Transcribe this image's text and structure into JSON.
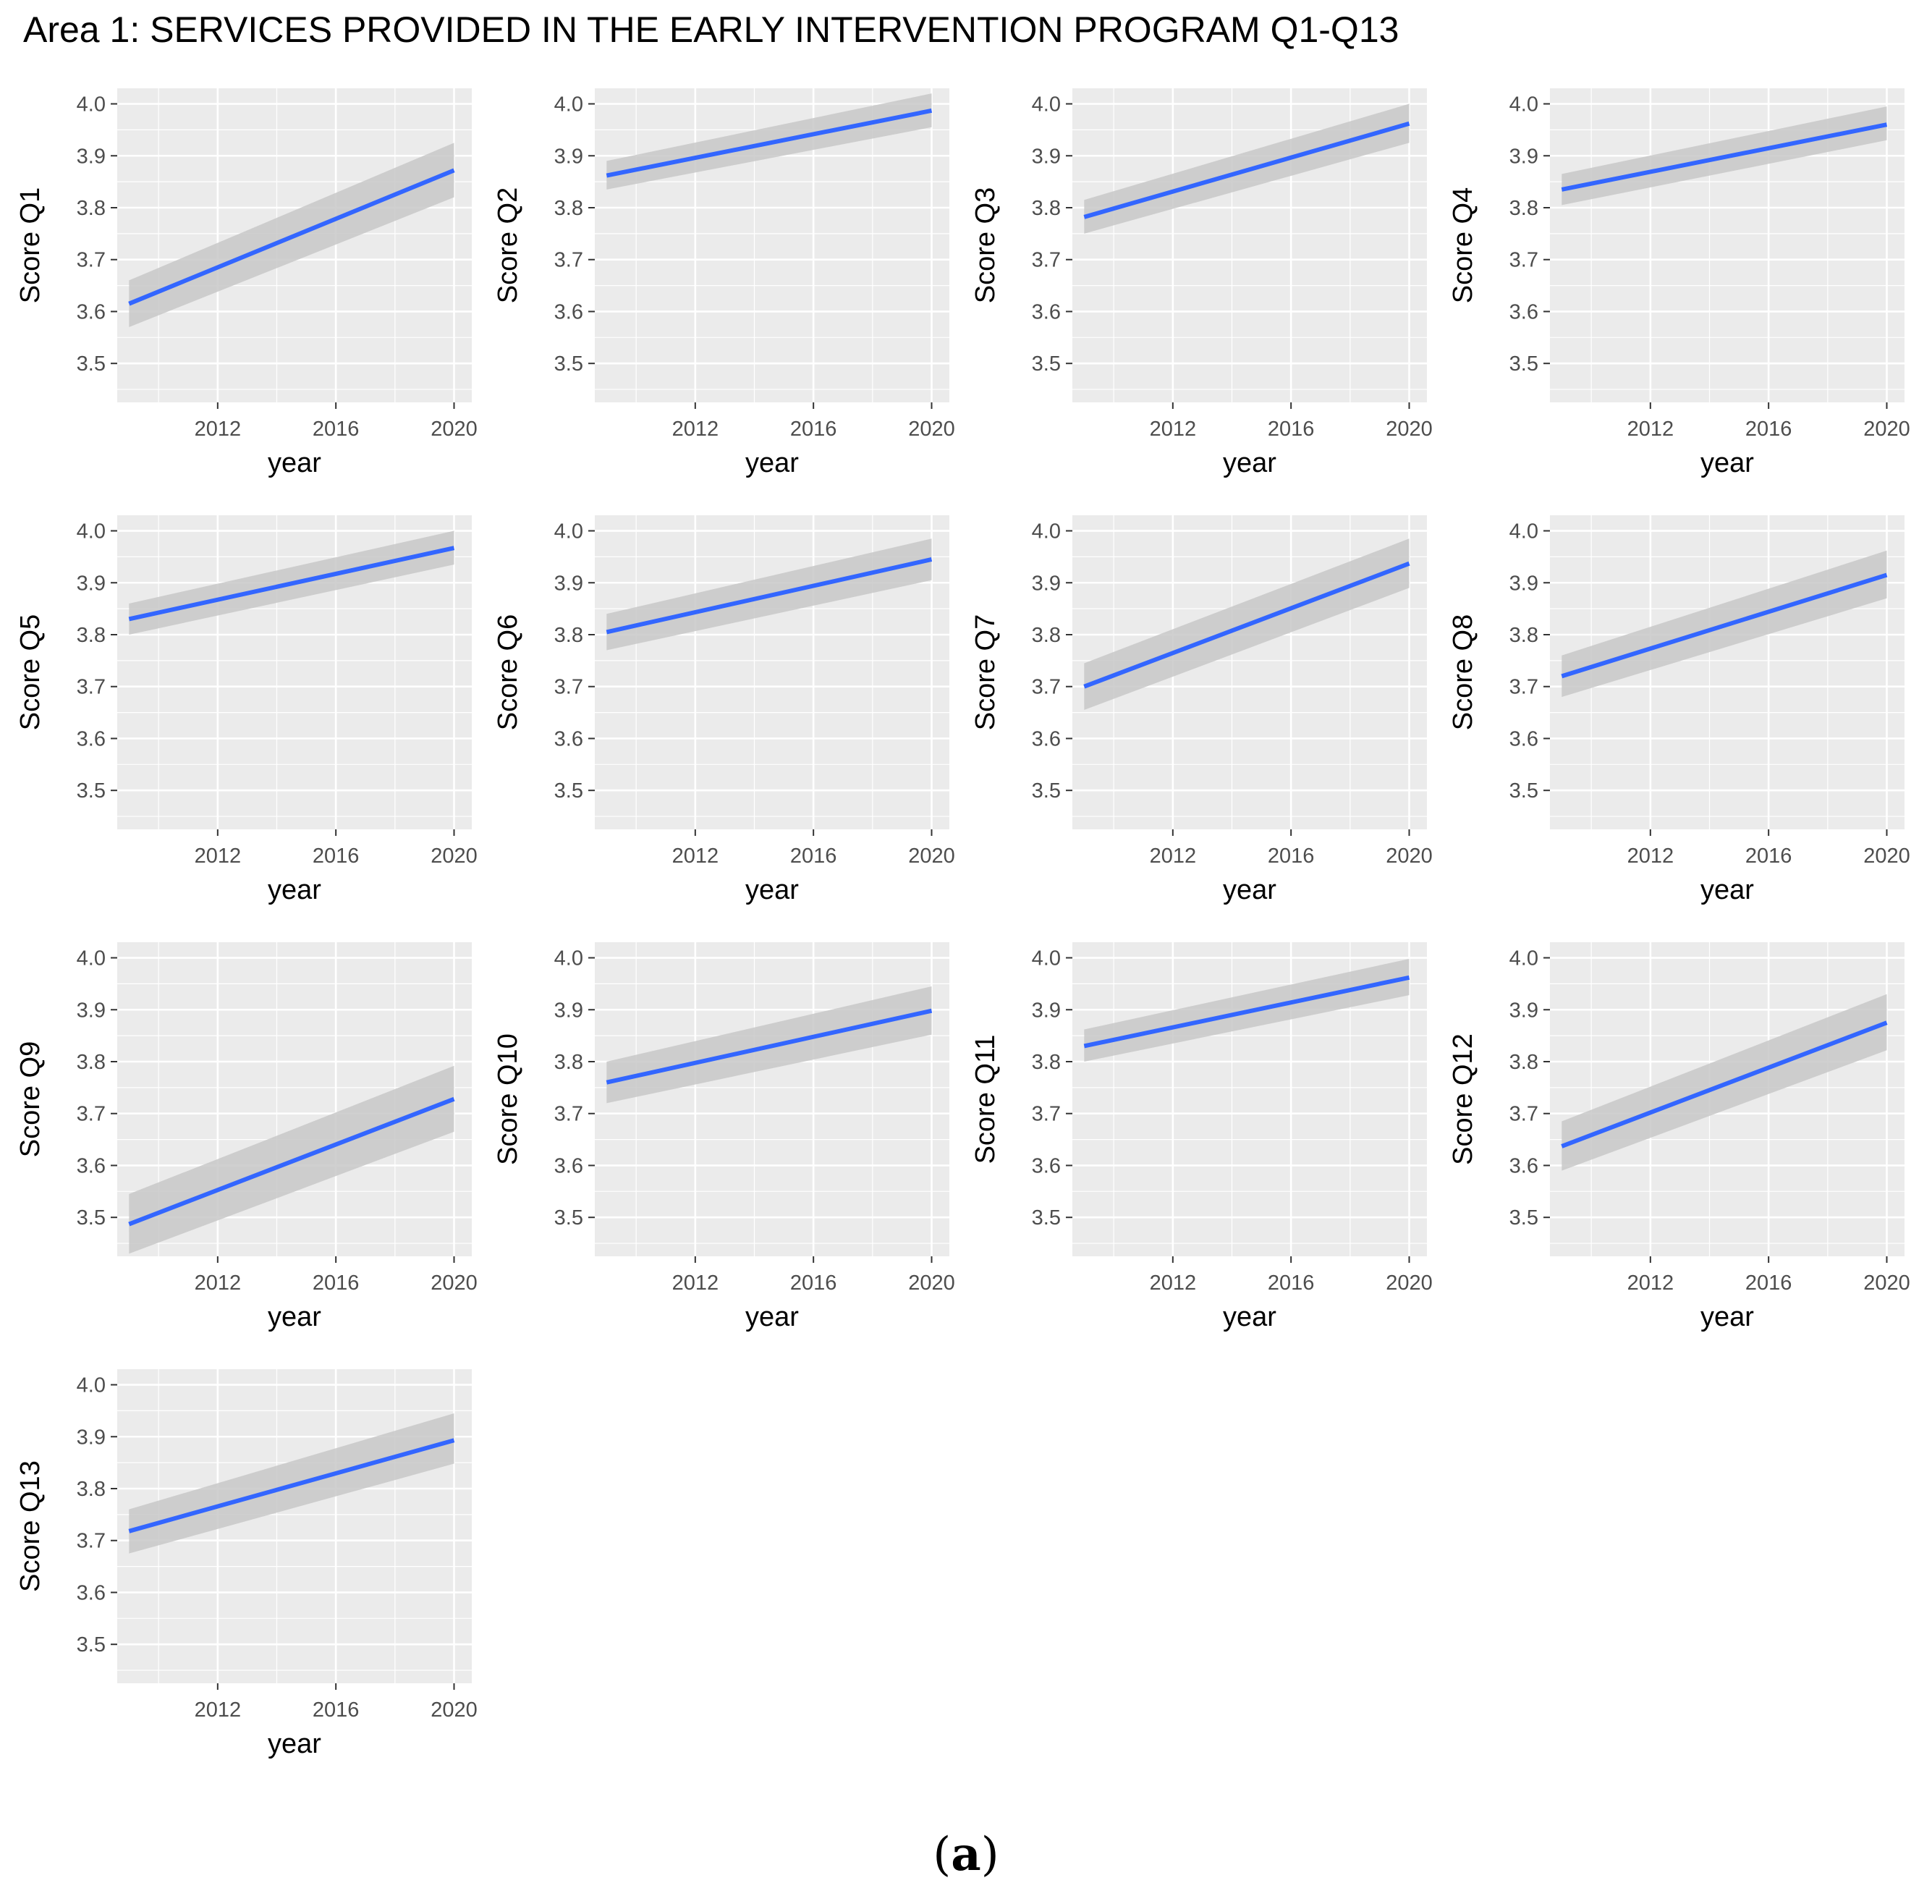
{
  "title": "Area 1: SERVICES PROVIDED IN THE EARLY INTERVENTION PROGRAM Q1-Q13",
  "panel_caption": {
    "open": "(",
    "letter": "a",
    "close": ")"
  },
  "colors": {
    "panel_background": "#ebebeb",
    "grid_major": "#ffffff",
    "line": "#3366ff",
    "confidence_band": "#c8c8c8",
    "tick_label": "#4d4d4d",
    "axis_title": "#000000"
  },
  "chart_data": [
    {
      "type": "line",
      "title": "",
      "xlabel": "year",
      "ylabel": "Score Q1",
      "xlim": [
        2008.6,
        2020.6
      ],
      "ylim": [
        3.425,
        4.03
      ],
      "x_ticks": [
        2012,
        2016,
        2020
      ],
      "y_ticks": [
        3.5,
        3.6,
        3.7,
        3.8,
        3.9,
        4.0
      ],
      "x": [
        2009,
        2020
      ],
      "values": [
        3.615,
        3.872
      ],
      "band_lower": [
        3.57,
        3.82
      ],
      "band_upper": [
        3.66,
        3.925
      ]
    },
    {
      "type": "line",
      "title": "",
      "xlabel": "year",
      "ylabel": "Score Q2",
      "xlim": [
        2008.6,
        2020.6
      ],
      "ylim": [
        3.425,
        4.03
      ],
      "x_ticks": [
        2012,
        2016,
        2020
      ],
      "y_ticks": [
        3.5,
        3.6,
        3.7,
        3.8,
        3.9,
        4.0
      ],
      "x": [
        2009,
        2020
      ],
      "values": [
        3.862,
        3.987
      ],
      "band_lower": [
        3.835,
        3.955
      ],
      "band_upper": [
        3.89,
        4.02
      ]
    },
    {
      "type": "line",
      "title": "",
      "xlabel": "year",
      "ylabel": "Score Q3",
      "xlim": [
        2008.6,
        2020.6
      ],
      "ylim": [
        3.425,
        4.03
      ],
      "x_ticks": [
        2012,
        2016,
        2020
      ],
      "y_ticks": [
        3.5,
        3.6,
        3.7,
        3.8,
        3.9,
        4.0
      ],
      "x": [
        2009,
        2020
      ],
      "values": [
        3.782,
        3.962
      ],
      "band_lower": [
        3.75,
        3.925
      ],
      "band_upper": [
        3.815,
        4.0
      ]
    },
    {
      "type": "line",
      "title": "",
      "xlabel": "year",
      "ylabel": "Score Q4",
      "xlim": [
        2008.6,
        2020.6
      ],
      "ylim": [
        3.425,
        4.03
      ],
      "x_ticks": [
        2012,
        2016,
        2020
      ],
      "y_ticks": [
        3.5,
        3.6,
        3.7,
        3.8,
        3.9,
        4.0
      ],
      "x": [
        2009,
        2020
      ],
      "values": [
        3.835,
        3.96
      ],
      "band_lower": [
        3.805,
        3.93
      ],
      "band_upper": [
        3.865,
        3.995
      ]
    },
    {
      "type": "line",
      "title": "",
      "xlabel": "year",
      "ylabel": "Score Q5",
      "xlim": [
        2008.6,
        2020.6
      ],
      "ylim": [
        3.425,
        4.03
      ],
      "x_ticks": [
        2012,
        2016,
        2020
      ],
      "y_ticks": [
        3.5,
        3.6,
        3.7,
        3.8,
        3.9,
        4.0
      ],
      "x": [
        2009,
        2020
      ],
      "values": [
        3.83,
        3.967
      ],
      "band_lower": [
        3.8,
        3.935
      ],
      "band_upper": [
        3.86,
        4.0
      ]
    },
    {
      "type": "line",
      "title": "",
      "xlabel": "year",
      "ylabel": "Score Q6",
      "xlim": [
        2008.6,
        2020.6
      ],
      "ylim": [
        3.425,
        4.03
      ],
      "x_ticks": [
        2012,
        2016,
        2020
      ],
      "y_ticks": [
        3.5,
        3.6,
        3.7,
        3.8,
        3.9,
        4.0
      ],
      "x": [
        2009,
        2020
      ],
      "values": [
        3.805,
        3.945
      ],
      "band_lower": [
        3.77,
        3.905
      ],
      "band_upper": [
        3.84,
        3.985
      ]
    },
    {
      "type": "line",
      "title": "",
      "xlabel": "year",
      "ylabel": "Score Q7",
      "xlim": [
        2008.6,
        2020.6
      ],
      "ylim": [
        3.425,
        4.03
      ],
      "x_ticks": [
        2012,
        2016,
        2020
      ],
      "y_ticks": [
        3.5,
        3.6,
        3.7,
        3.8,
        3.9,
        4.0
      ],
      "x": [
        2009,
        2020
      ],
      "values": [
        3.7,
        3.937
      ],
      "band_lower": [
        3.655,
        3.89
      ],
      "band_upper": [
        3.745,
        3.985
      ]
    },
    {
      "type": "line",
      "title": "",
      "xlabel": "year",
      "ylabel": "Score Q8",
      "xlim": [
        2008.6,
        2020.6
      ],
      "ylim": [
        3.425,
        4.03
      ],
      "x_ticks": [
        2012,
        2016,
        2020
      ],
      "y_ticks": [
        3.5,
        3.6,
        3.7,
        3.8,
        3.9,
        4.0
      ],
      "x": [
        2009,
        2020
      ],
      "values": [
        3.72,
        3.915
      ],
      "band_lower": [
        3.68,
        3.87
      ],
      "band_upper": [
        3.76,
        3.962
      ]
    },
    {
      "type": "line",
      "title": "",
      "xlabel": "year",
      "ylabel": "Score Q9",
      "xlim": [
        2008.6,
        2020.6
      ],
      "ylim": [
        3.425,
        4.03
      ],
      "x_ticks": [
        2012,
        2016,
        2020
      ],
      "y_ticks": [
        3.5,
        3.6,
        3.7,
        3.8,
        3.9,
        4.0
      ],
      "x": [
        2009,
        2020
      ],
      "values": [
        3.487,
        3.728
      ],
      "band_lower": [
        3.43,
        3.665
      ],
      "band_upper": [
        3.545,
        3.792
      ]
    },
    {
      "type": "line",
      "title": "",
      "xlabel": "year",
      "ylabel": "Score Q10",
      "xlim": [
        2008.6,
        2020.6
      ],
      "ylim": [
        3.425,
        4.03
      ],
      "x_ticks": [
        2012,
        2016,
        2020
      ],
      "y_ticks": [
        3.5,
        3.6,
        3.7,
        3.8,
        3.9,
        4.0
      ],
      "x": [
        2009,
        2020
      ],
      "values": [
        3.76,
        3.898
      ],
      "band_lower": [
        3.72,
        3.852
      ],
      "band_upper": [
        3.8,
        3.945
      ]
    },
    {
      "type": "line",
      "title": "",
      "xlabel": "year",
      "ylabel": "Score Q11",
      "xlim": [
        2008.6,
        2020.6
      ],
      "ylim": [
        3.425,
        4.03
      ],
      "x_ticks": [
        2012,
        2016,
        2020
      ],
      "y_ticks": [
        3.5,
        3.6,
        3.7,
        3.8,
        3.9,
        4.0
      ],
      "x": [
        2009,
        2020
      ],
      "values": [
        3.83,
        3.962
      ],
      "band_lower": [
        3.8,
        3.928
      ],
      "band_upper": [
        3.862,
        3.998
      ]
    },
    {
      "type": "line",
      "title": "",
      "xlabel": "year",
      "ylabel": "Score Q12",
      "xlim": [
        2008.6,
        2020.6
      ],
      "ylim": [
        3.425,
        4.03
      ],
      "x_ticks": [
        2012,
        2016,
        2020
      ],
      "y_ticks": [
        3.5,
        3.6,
        3.7,
        3.8,
        3.9,
        4.0
      ],
      "x": [
        2009,
        2020
      ],
      "values": [
        3.637,
        3.875
      ],
      "band_lower": [
        3.59,
        3.822
      ],
      "band_upper": [
        3.685,
        3.93
      ]
    },
    {
      "type": "line",
      "title": "",
      "xlabel": "year",
      "ylabel": "Score Q13",
      "xlim": [
        2008.6,
        2020.6
      ],
      "ylim": [
        3.425,
        4.03
      ],
      "x_ticks": [
        2012,
        2016,
        2020
      ],
      "y_ticks": [
        3.5,
        3.6,
        3.7,
        3.8,
        3.9,
        4.0
      ],
      "x": [
        2009,
        2020
      ],
      "values": [
        3.718,
        3.893
      ],
      "band_lower": [
        3.675,
        3.848
      ],
      "band_upper": [
        3.76,
        3.945
      ]
    }
  ]
}
